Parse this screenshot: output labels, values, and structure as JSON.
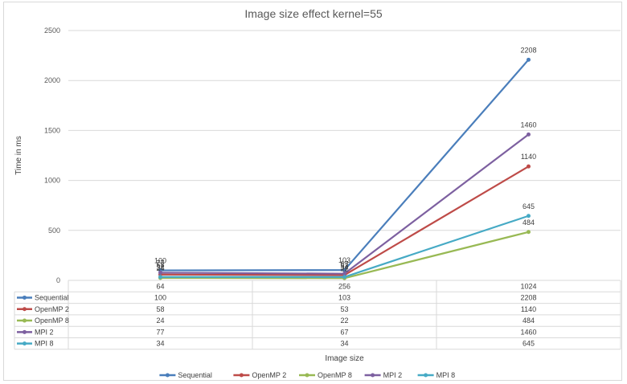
{
  "chart_data": {
    "type": "line",
    "title": "Image size effect kernel=55",
    "xlabel": "Image size",
    "ylabel": "Time in ms",
    "categories": [
      "64",
      "256",
      "1024"
    ],
    "ylim": [
      0,
      2500
    ],
    "yticks": [
      0,
      500,
      1000,
      1500,
      2000,
      2500
    ],
    "grid": true,
    "legend_position": "bottom",
    "data_table": true,
    "series": [
      {
        "name": "Sequential",
        "values": [
          100,
          103,
          2208
        ],
        "color": "#4a7ebb"
      },
      {
        "name": "OpenMP 2",
        "values": [
          58,
          53,
          1140
        ],
        "color": "#be4b48"
      },
      {
        "name": "OpenMP 8",
        "values": [
          24,
          22,
          484
        ],
        "color": "#98b954"
      },
      {
        "name": "MPI 2",
        "values": [
          77,
          67,
          1460
        ],
        "color": "#7d60a0"
      },
      {
        "name": "MPI 8",
        "values": [
          34,
          34,
          645
        ],
        "color": "#46aac5"
      }
    ]
  }
}
